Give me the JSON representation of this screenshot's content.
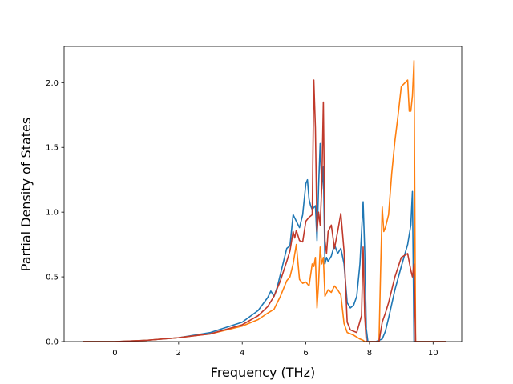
{
  "chart_data": {
    "type": "line",
    "title": "",
    "xlabel": "Frequency (THz)",
    "ylabel": "Partial Density of States",
    "xlim": [
      -1.6,
      10.9
    ],
    "ylim": [
      0.0,
      2.28
    ],
    "xticks": [
      0,
      2,
      4,
      6,
      8,
      10
    ],
    "yticks": [
      0.0,
      0.5,
      1.0,
      1.5,
      2.0
    ],
    "xtick_labels": [
      "0",
      "2",
      "4",
      "6",
      "8",
      "10"
    ],
    "ytick_labels": [
      "0.0",
      "0.5",
      "1.0",
      "1.5",
      "2.0"
    ],
    "grid": false,
    "legend": false,
    "series": [
      {
        "color": "#1f77b4",
        "x": [
          -1.0,
          0.0,
          1.0,
          2.0,
          3.0,
          4.0,
          4.5,
          4.8,
          4.9,
          5.0,
          5.1,
          5.4,
          5.5,
          5.6,
          5.7,
          5.8,
          5.9,
          6.0,
          6.05,
          6.1,
          6.15,
          6.2,
          6.3,
          6.35,
          6.4,
          6.45,
          6.5,
          6.55,
          6.6,
          6.65,
          6.7,
          6.8,
          6.9,
          7.0,
          7.1,
          7.2,
          7.3,
          7.4,
          7.5,
          7.6,
          7.7,
          7.8,
          7.85,
          7.9,
          7.95,
          8.0,
          8.2,
          8.4,
          8.5,
          8.6,
          8.8,
          9.0,
          9.2,
          9.3,
          9.35,
          9.4,
          9.45,
          9.5,
          10.0,
          10.4
        ],
        "y": [
          0.0,
          0.0,
          0.01,
          0.03,
          0.07,
          0.15,
          0.24,
          0.34,
          0.39,
          0.35,
          0.42,
          0.72,
          0.74,
          0.98,
          0.93,
          0.88,
          0.98,
          1.22,
          1.25,
          1.1,
          1.05,
          1.02,
          1.05,
          0.78,
          1.2,
          1.53,
          1.18,
          1.35,
          0.6,
          0.65,
          0.62,
          0.66,
          0.75,
          0.68,
          0.72,
          0.6,
          0.3,
          0.26,
          0.28,
          0.35,
          0.6,
          1.08,
          0.7,
          0.1,
          0.0,
          0.0,
          0.0,
          0.02,
          0.08,
          0.18,
          0.4,
          0.58,
          0.75,
          0.9,
          1.16,
          0.0,
          0.0,
          0.0,
          0.0,
          0.0
        ]
      },
      {
        "color": "#ff7f0e",
        "x": [
          -1.0,
          0.0,
          1.0,
          2.0,
          3.0,
          4.0,
          4.5,
          4.8,
          5.0,
          5.2,
          5.4,
          5.5,
          5.6,
          5.7,
          5.8,
          5.9,
          6.0,
          6.1,
          6.2,
          6.25,
          6.3,
          6.35,
          6.4,
          6.45,
          6.5,
          6.55,
          6.6,
          6.7,
          6.8,
          6.9,
          7.0,
          7.1,
          7.2,
          7.3,
          7.5,
          7.7,
          7.8,
          7.85,
          7.9,
          8.3,
          8.35,
          8.4,
          8.45,
          8.5,
          8.6,
          8.7,
          8.8,
          8.9,
          9.0,
          9.2,
          9.25,
          9.3,
          9.35,
          9.4,
          9.45,
          9.5,
          10.0,
          10.4
        ],
        "y": [
          0.0,
          0.0,
          0.01,
          0.03,
          0.06,
          0.12,
          0.17,
          0.22,
          0.25,
          0.35,
          0.47,
          0.5,
          0.6,
          0.75,
          0.48,
          0.45,
          0.46,
          0.43,
          0.6,
          0.58,
          0.65,
          0.26,
          0.45,
          0.73,
          0.6,
          0.65,
          0.35,
          0.4,
          0.38,
          0.43,
          0.4,
          0.36,
          0.14,
          0.07,
          0.05,
          0.02,
          0.01,
          0.0,
          0.0,
          0.0,
          0.55,
          1.04,
          0.85,
          0.88,
          0.98,
          1.3,
          1.55,
          1.75,
          1.97,
          2.02,
          1.78,
          1.78,
          1.9,
          2.17,
          0.0,
          0.0,
          0.0,
          0.0
        ]
      },
      {
        "color": "#c0392b",
        "x": [
          -1.0,
          0.0,
          1.0,
          2.0,
          3.0,
          4.0,
          4.5,
          4.8,
          5.0,
          5.2,
          5.4,
          5.5,
          5.6,
          5.65,
          5.7,
          5.8,
          5.9,
          6.0,
          6.1,
          6.2,
          6.25,
          6.3,
          6.35,
          6.4,
          6.45,
          6.5,
          6.55,
          6.6,
          6.65,
          6.7,
          6.8,
          6.9,
          7.0,
          7.1,
          7.2,
          7.3,
          7.4,
          7.6,
          7.75,
          7.8,
          7.85,
          7.9,
          7.95,
          8.3,
          8.4,
          8.5,
          8.6,
          8.8,
          9.0,
          9.2,
          9.3,
          9.35,
          9.4,
          9.45,
          9.5,
          10.0,
          10.4
        ],
        "y": [
          0.0,
          0.0,
          0.01,
          0.03,
          0.06,
          0.13,
          0.2,
          0.27,
          0.35,
          0.47,
          0.62,
          0.7,
          0.85,
          0.8,
          0.86,
          0.78,
          0.77,
          0.93,
          0.96,
          0.98,
          2.02,
          1.65,
          0.85,
          1.0,
          0.9,
          1.2,
          1.85,
          0.78,
          0.68,
          0.85,
          0.9,
          0.72,
          0.85,
          0.99,
          0.7,
          0.15,
          0.09,
          0.07,
          0.2,
          0.73,
          0.2,
          0.0,
          0.0,
          0.0,
          0.15,
          0.22,
          0.3,
          0.5,
          0.65,
          0.68,
          0.55,
          0.5,
          0.6,
          0.0,
          0.0,
          0.0,
          0.0
        ]
      }
    ]
  }
}
